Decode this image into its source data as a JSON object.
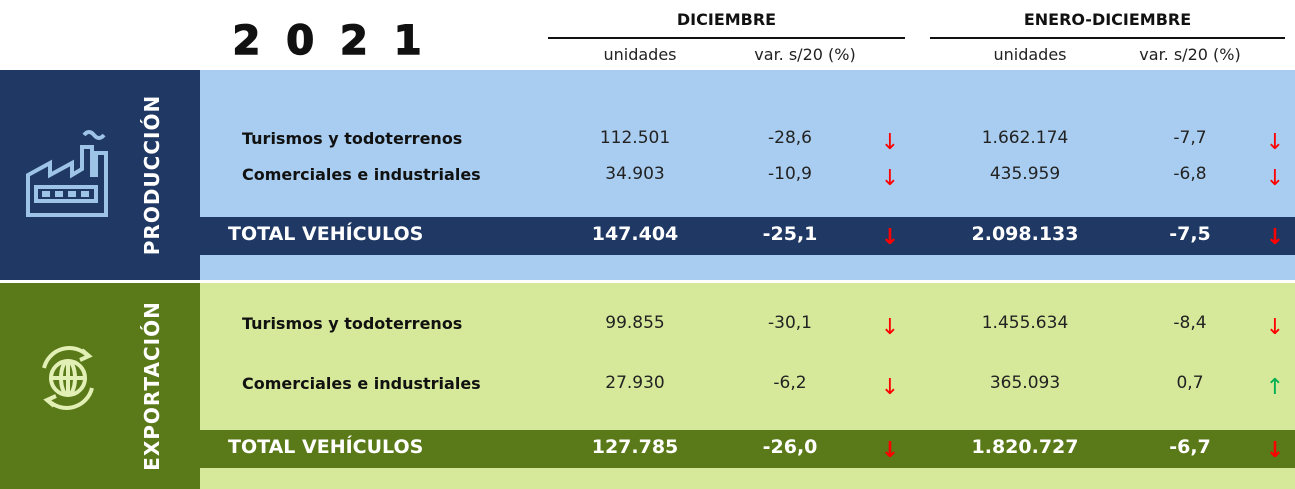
{
  "header": {
    "year": "2 0 2 1",
    "groups": [
      {
        "title": "DICIEMBRE",
        "columns": [
          "unidades",
          "var. s/20 (%)"
        ]
      },
      {
        "title": "ENERO-DICIEMBRE",
        "columns": [
          "unidades",
          "var. s/20 (%)"
        ]
      }
    ]
  },
  "sections": [
    {
      "label": "PRODUCCIÓN",
      "rows": [
        {
          "name": "Turismos y todoterrenos",
          "cells": [
            "112.501",
            "-28,6",
            "↓",
            "1.662.174",
            "-7,7",
            "↓"
          ]
        },
        {
          "name": "Comerciales e industriales",
          "cells": [
            "34.903",
            "-10,9",
            "↓",
            "435.959",
            "-6,8",
            "↓"
          ]
        }
      ],
      "total": {
        "name": "TOTAL VEHÍCULOS",
        "cells": [
          "147.404",
          "-25,1",
          "↓",
          "2.098.133",
          "-7,5",
          "↓"
        ]
      }
    },
    {
      "label": "EXPORTACIÓN",
      "rows": [
        {
          "name": "Turismos y todoterrenos",
          "cells": [
            "99.855",
            "-30,1",
            "↓",
            "1.455.634",
            "-8,4",
            "↓"
          ]
        },
        {
          "name": "Comerciales e industriales",
          "cells": [
            "27.930",
            "-6,2",
            "↓",
            "365.093",
            "0,7",
            "↑"
          ]
        }
      ],
      "total": {
        "name": "TOTAL VEHÍCULOS",
        "cells": [
          "127.785",
          "-26,0",
          "↓",
          "1.820.727",
          "-6,7",
          "↓"
        ]
      }
    }
  ]
}
